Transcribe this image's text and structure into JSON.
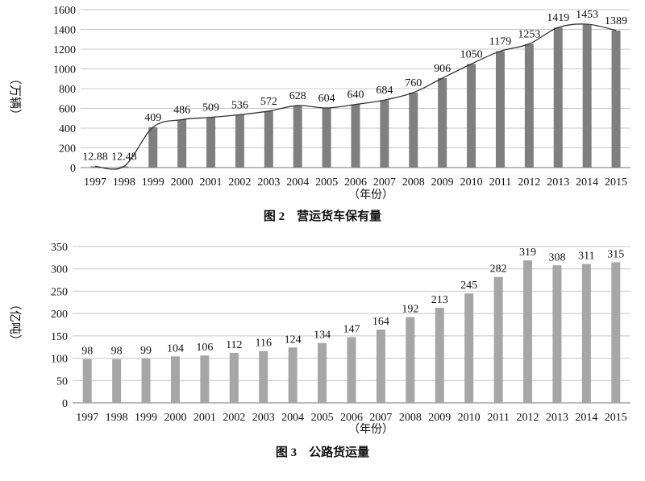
{
  "chart_data": [
    {
      "type": "bar",
      "title": "",
      "caption": "图 2　营运货车保有量",
      "xlabel": "（年份）",
      "ylabel": "（万辆）",
      "categories": [
        "1997",
        "1998",
        "1999",
        "2000",
        "2001",
        "2002",
        "2003",
        "2004",
        "2005",
        "2006",
        "2007",
        "2008",
        "2009",
        "2010",
        "2011",
        "2012",
        "2013",
        "2014",
        "2015"
      ],
      "values": [
        12.88,
        12.48,
        409,
        486,
        509,
        536,
        572,
        628,
        604,
        640,
        684,
        760,
        906,
        1050,
        1179,
        1253,
        1419,
        1453,
        1389
      ],
      "value_labels": [
        "12.88",
        "12.48",
        "409",
        "486",
        "509",
        "536",
        "572",
        "628",
        "604",
        "640",
        "684",
        "760",
        "906",
        "1050",
        "1179",
        "1253",
        "1419",
        "1453",
        "1389"
      ],
      "ylim": [
        0,
        1600
      ],
      "yticks": [
        0,
        200,
        400,
        600,
        800,
        1000,
        1200,
        1400,
        1600
      ],
      "trend_line": true,
      "grid": true,
      "bar_color": "#7f7f7f"
    },
    {
      "type": "bar",
      "title": "",
      "caption": "图 3　公路货运量",
      "xlabel": "（年份）",
      "ylabel": "（亿吨）",
      "categories": [
        "1997",
        "1998",
        "1999",
        "2000",
        "2001",
        "2002",
        "2003",
        "2004",
        "2005",
        "2006",
        "2007",
        "2008",
        "2009",
        "2010",
        "2011",
        "2012",
        "2013",
        "2014",
        "2015"
      ],
      "values": [
        98,
        98,
        99,
        104,
        106,
        112,
        116,
        124,
        134,
        147,
        164,
        192,
        213,
        245,
        282,
        319,
        308,
        311,
        315
      ],
      "value_labels": [
        "98",
        "98",
        "99",
        "104",
        "106",
        "112",
        "116",
        "124",
        "134",
        "147",
        "164",
        "192",
        "213",
        "245",
        "282",
        "319",
        "308",
        "311",
        "315"
      ],
      "ylim": [
        0,
        350
      ],
      "yticks": [
        0,
        50,
        100,
        150,
        200,
        250,
        300,
        350
      ],
      "trend_line": false,
      "grid": true,
      "bar_color": "#a6a6a6"
    }
  ]
}
